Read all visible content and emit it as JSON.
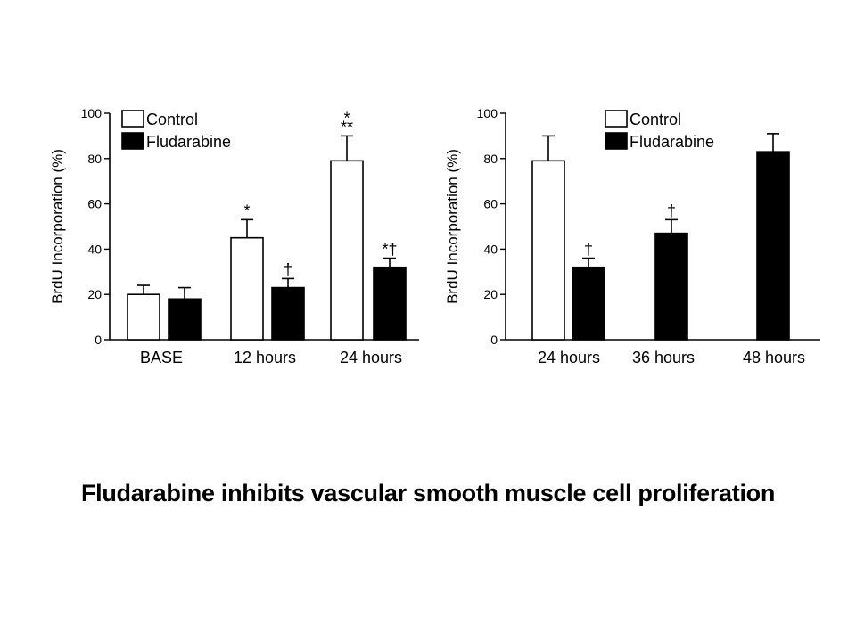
{
  "caption": "Fludarabine inhibits vascular smooth muscle cell proliferation",
  "chart_data": [
    {
      "type": "bar",
      "ylabel": "BrdU Incorporation (%)",
      "ylim": [
        0,
        100
      ],
      "yticks": [
        0,
        20,
        40,
        60,
        80,
        100
      ],
      "categories": [
        "BASE",
        "12 hours",
        "24 hours"
      ],
      "legend": "top-left",
      "series": [
        {
          "name": "Control",
          "color": "#ffffff",
          "values": [
            20,
            45,
            79
          ],
          "errors": [
            4,
            8,
            11
          ],
          "annotations": [
            "",
            "*",
            "*\n**"
          ]
        },
        {
          "name": "Fludarabine",
          "color": "#000000",
          "values": [
            18,
            23,
            32
          ],
          "errors": [
            5,
            4,
            4
          ],
          "annotations": [
            "",
            "†",
            "*†"
          ]
        }
      ]
    },
    {
      "type": "bar",
      "ylabel": "BrdU Incorporation (%)",
      "ylim": [
        0,
        100
      ],
      "yticks": [
        0,
        20,
        40,
        60,
        80,
        100
      ],
      "categories": [
        "24 hours",
        "36 hours",
        "48 hours"
      ],
      "legend": "top-left",
      "series": [
        {
          "name": "Control",
          "color": "#ffffff",
          "values": [
            79,
            null,
            null
          ],
          "errors": [
            11,
            null,
            null
          ],
          "annotations": [
            "",
            "",
            ""
          ]
        },
        {
          "name": "Fludarabine",
          "color": "#000000",
          "values": [
            32,
            47,
            83
          ],
          "errors": [
            4,
            6,
            8
          ],
          "annotations": [
            "†",
            "†",
            ""
          ]
        }
      ]
    }
  ]
}
